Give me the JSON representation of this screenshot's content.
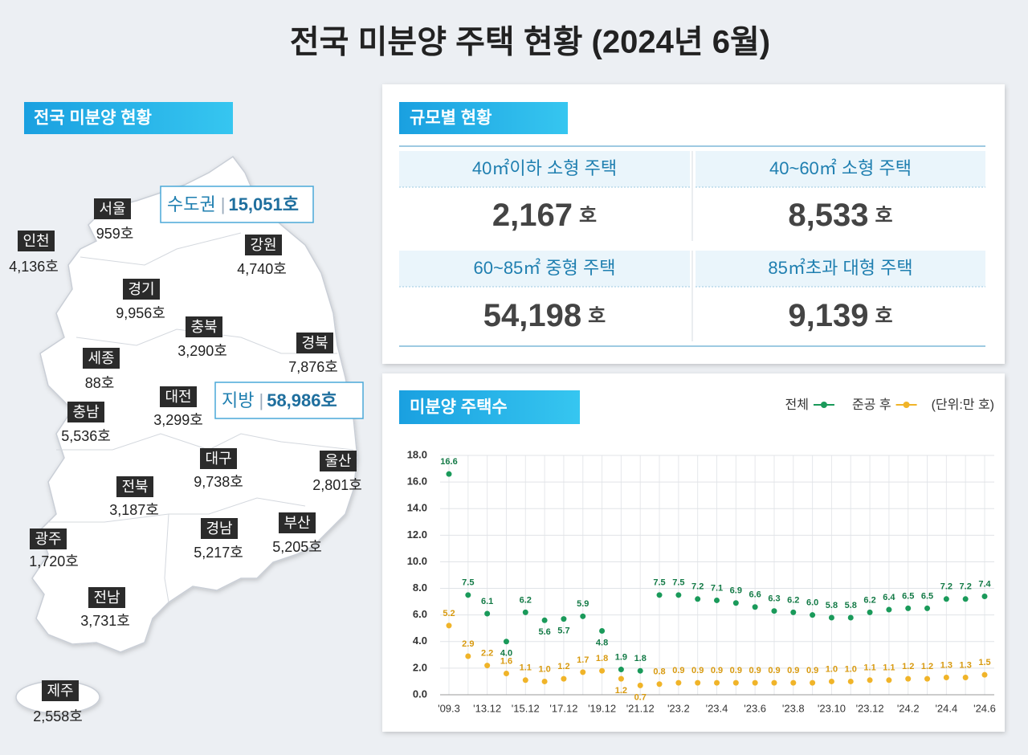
{
  "header": {
    "title": "전국 미분양 주택 현황  (2024년 6월)"
  },
  "map": {
    "heading": "전국 미분양 현황",
    "regions": [
      {
        "name": "서울",
        "value": "959호"
      },
      {
        "name": "인천",
        "value": "4,136호"
      },
      {
        "name": "강원",
        "value": "4,740호"
      },
      {
        "name": "경기",
        "value": "9,956호"
      },
      {
        "name": "충북",
        "value": "3,290호"
      },
      {
        "name": "경북",
        "value": "7,876호"
      },
      {
        "name": "세종",
        "value": "88호"
      },
      {
        "name": "대전",
        "value": "3,299호"
      },
      {
        "name": "충남",
        "value": "5,536호"
      },
      {
        "name": "대구",
        "value": "9,738호"
      },
      {
        "name": "울산",
        "value": "2,801호"
      },
      {
        "name": "전북",
        "value": "3,187호"
      },
      {
        "name": "부산",
        "value": "5,205호"
      },
      {
        "name": "경남",
        "value": "5,217호"
      },
      {
        "name": "광주",
        "value": "1,720호"
      },
      {
        "name": "전남",
        "value": "3,731호"
      },
      {
        "name": "제주",
        "value": "2,558호"
      }
    ],
    "summaries": [
      {
        "name": "수도권",
        "value": "15,051호"
      },
      {
        "name": "지방",
        "value": "58,986호"
      }
    ]
  },
  "size": {
    "heading": "규모별 현황",
    "items": [
      {
        "label": "40㎡이하 소형 주택",
        "value": "2,167",
        "unit": "호"
      },
      {
        "label": "40~60㎡ 소형 주택",
        "value": "8,533",
        "unit": "호"
      },
      {
        "label": "60~85㎡ 중형 주택",
        "value": "54,198",
        "unit": "호"
      },
      {
        "label": "85㎡초과 대형 주택",
        "value": "9,139",
        "unit": "호"
      }
    ]
  },
  "chart_data": {
    "type": "line",
    "title": "미분양 주택수",
    "unit_note": "(단위:만 호)",
    "legend": "top-right",
    "grid": true,
    "categories": [
      "'09.3",
      null,
      "'13.12",
      null,
      "'15.12",
      null,
      "'17.12",
      null,
      "'19.12",
      null,
      "'21.12",
      null,
      "'23.2",
      null,
      "'23.4",
      null,
      "'23.6",
      null,
      "'23.8",
      null,
      "'23.10",
      null,
      "'23.12",
      null,
      "'24.2",
      null,
      "'24.4",
      null,
      "'24.6"
    ],
    "ylim": [
      0,
      18
    ],
    "yticks": [
      {
        "value": 0,
        "label": "0.0"
      },
      {
        "value": 2,
        "label": "2.0"
      },
      {
        "value": 4,
        "label": "4.0"
      },
      {
        "value": 6,
        "label": "6.0"
      },
      {
        "value": 8,
        "label": "8.0"
      },
      {
        "value": 10,
        "label": "10.0"
      },
      {
        "value": 12,
        "label": "12.0"
      },
      {
        "value": 14,
        "label": "14.0"
      },
      {
        "value": 16,
        "label": "16.0"
      },
      {
        "value": 18,
        "label": "18.0"
      }
    ],
    "series": [
      {
        "name": "전체",
        "color": "#1a9a5a",
        "values": [
          16.6,
          7.5,
          6.1,
          4.0,
          6.2,
          5.6,
          5.7,
          5.9,
          4.8,
          1.9,
          1.8,
          7.5,
          7.5,
          7.2,
          7.1,
          6.9,
          6.6,
          6.3,
          6.2,
          6.0,
          5.8,
          5.8,
          6.2,
          6.4,
          6.5,
          6.5,
          7.2,
          7.2,
          7.4
        ],
        "value_labels": [
          "16.6",
          "7.5",
          "6.1",
          "4.0",
          "6.2",
          "5.6",
          "5.7",
          "5.9",
          "4.8",
          "1.9",
          "1.8",
          "7.5",
          "7.5",
          "7.2",
          "7.1",
          "6.9",
          "6.6",
          "6.3",
          "6.2",
          "6.0",
          "5.8",
          "5.8",
          "6.2",
          "6.4",
          "6.5",
          "6.5",
          "7.2",
          "7.2",
          "7.4"
        ]
      },
      {
        "name": "준공 후",
        "color": "#f0b429",
        "values": [
          5.2,
          2.9,
          2.2,
          1.6,
          1.1,
          1.0,
          1.2,
          1.7,
          1.8,
          1.2,
          0.7,
          0.8,
          0.9,
          0.9,
          0.9,
          0.9,
          0.9,
          0.9,
          0.9,
          0.9,
          1.0,
          1.0,
          1.1,
          1.1,
          1.2,
          1.2,
          1.3,
          1.3,
          1.5
        ],
        "value_labels": [
          "5.2",
          "2.9",
          "2.2",
          "1.6",
          "1.1",
          "1.0",
          "1.2",
          "1.7",
          "1.8",
          "1.2",
          "0.7",
          "0.8",
          "0.9",
          "0.9",
          "0.9",
          "0.9",
          "0.9",
          "0.9",
          "0.9",
          "0.9",
          "1.0",
          "1.0",
          "1.1",
          "1.1",
          "1.2",
          "1.2",
          "1.3",
          "1.3",
          "1.5"
        ]
      }
    ]
  }
}
